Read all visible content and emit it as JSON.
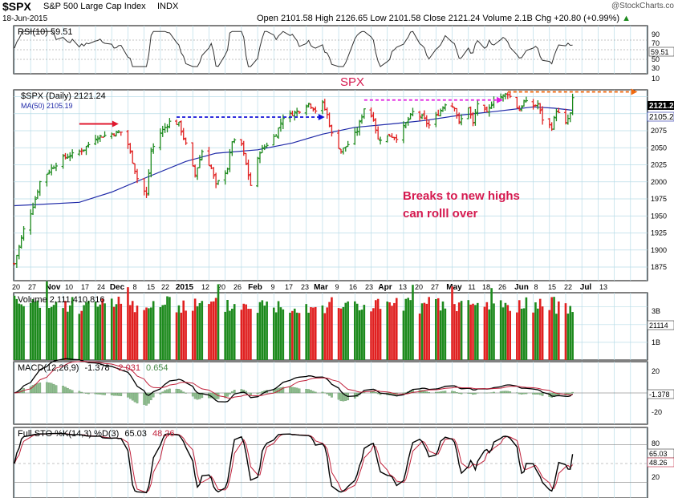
{
  "header": {
    "symbol": "$SPX",
    "name": "S&P 500 Large Cap Index",
    "exchange": "INDX",
    "date": "18-Jun-2015",
    "watermark": "@StockCharts.com",
    "open_label": "Open",
    "open": "2101.58",
    "high_label": "High",
    "high": "2126.65",
    "low_label": "Low",
    "low": "2101.58",
    "close_label": "Close",
    "close": "2121.24",
    "volume_label": "Volume",
    "volume": "2.1B",
    "chg_label": "Chg",
    "chg": "+20.80 (+0.99%)",
    "chg_arrow": "▲"
  },
  "colors": {
    "grid": "#b9dce8",
    "bar_up": "#1d8a1d",
    "bar_down": "#e02020",
    "ma": "#1f2aa8",
    "annotation": "#d5194f",
    "arrow_red": "#e0182e",
    "arrow_blue": "#1212d8",
    "arrow_magenta": "#e020e0",
    "arrow_orange": "#f06a10",
    "rsi_fill": "#8fbf8f",
    "macd_hist": "#8fbf8f",
    "stoch_slow": "#c0203a"
  },
  "rsi_panel": {
    "legend": "RSI(10) 59.51",
    "value_badge": "59.51",
    "ticks": [
      "90",
      "70",
      "50",
      "30",
      "10"
    ]
  },
  "price_panel": {
    "legend_price": "$SPX (Daily) 2121.24",
    "legend_ma": "MA(50) 2105.19",
    "title_annotation": "SPX",
    "note_line1": "Breaks to new highs",
    "note_line2": "can rolll over",
    "price_badge": "2121.2",
    "ma_badge": "2105.2",
    "y_ticks": [
      "2075",
      "2050",
      "2025",
      "2000",
      "1975",
      "1950",
      "1925",
      "1900",
      "1875"
    ]
  },
  "x_axis": {
    "labels": [
      "20",
      "27",
      "Nov",
      "10",
      "17",
      "24",
      "Dec",
      "8",
      "15",
      "22",
      "2015",
      "12",
      "20",
      "26",
      "Feb",
      "9",
      "17",
      "23",
      "Mar",
      "9",
      "16",
      "23",
      "Apr",
      "13",
      "20",
      "27",
      "May",
      "11",
      "18",
      "26",
      "Jun",
      "8",
      "15",
      "22",
      "Jul",
      "13"
    ]
  },
  "volume_panel": {
    "legend": "Volume 2,111,410,816",
    "value_badge": "21114",
    "ticks": [
      "3B",
      "1B"
    ]
  },
  "macd_panel": {
    "legend_name": "MACD(12,26,9)",
    "legend_macd": "-1.378",
    "legend_signal": "-2.031",
    "legend_hist": "0.654",
    "value_badge": "-1.378",
    "ticks": [
      "20",
      "-20"
    ]
  },
  "stoch_panel": {
    "legend_name": "Full STO %K(14,3) %D(3)",
    "legend_k": "65.03",
    "legend_d": "48.26",
    "k_badge": "65.03",
    "d_badge": "48.26",
    "ticks": [
      "80",
      "20"
    ]
  },
  "chart_data": {
    "type": "ohlc",
    "title": "$SPX S&P 500 Large Cap Index INDX",
    "x_range": [
      "2014-10-20",
      "2015-07-20"
    ],
    "price_ylim": [
      1855,
      2135
    ],
    "price_points": [
      [
        "2014-10-20",
        1880
      ],
      [
        "2014-10-22",
        1905
      ],
      [
        "2014-10-24",
        1930
      ],
      [
        "2014-10-27",
        1955
      ],
      [
        "2014-10-29",
        1975
      ],
      [
        "2014-10-31",
        2000
      ],
      [
        "2014-11-05",
        2020
      ],
      [
        "2014-11-10",
        2035
      ],
      [
        "2014-11-14",
        2040
      ],
      [
        "2014-11-19",
        2048
      ],
      [
        "2014-11-24",
        2065
      ],
      [
        "2014-11-28",
        2068
      ],
      [
        "2014-12-03",
        2072
      ],
      [
        "2014-12-05",
        2073
      ],
      [
        "2014-12-08",
        2055
      ],
      [
        "2014-12-10",
        2030
      ],
      [
        "2014-12-12",
        2005
      ],
      [
        "2014-12-16",
        1980
      ],
      [
        "2014-12-18",
        2045
      ],
      [
        "2014-12-22",
        2072
      ],
      [
        "2014-12-26",
        2088
      ],
      [
        "2014-12-30",
        2085
      ],
      [
        "2015-01-02",
        2055
      ],
      [
        "2015-01-06",
        2010
      ],
      [
        "2015-01-09",
        2045
      ],
      [
        "2015-01-13",
        2020
      ],
      [
        "2015-01-15",
        1995
      ],
      [
        "2015-01-20",
        2020
      ],
      [
        "2015-01-22",
        2060
      ],
      [
        "2015-01-26",
        2055
      ],
      [
        "2015-01-28",
        2025
      ],
      [
        "2015-01-30",
        1995
      ],
      [
        "2015-02-03",
        2045
      ],
      [
        "2015-02-06",
        2055
      ],
      [
        "2015-02-10",
        2070
      ],
      [
        "2015-02-13",
        2095
      ],
      [
        "2015-02-17",
        2100
      ],
      [
        "2015-02-20",
        2105
      ],
      [
        "2015-02-24",
        2115
      ],
      [
        "2015-02-27",
        2105
      ],
      [
        "2015-03-02",
        2115
      ],
      [
        "2015-03-04",
        2098
      ],
      [
        "2015-03-06",
        2070
      ],
      [
        "2015-03-10",
        2045
      ],
      [
        "2015-03-13",
        2055
      ],
      [
        "2015-03-17",
        2075
      ],
      [
        "2015-03-20",
        2108
      ],
      [
        "2015-03-24",
        2093
      ],
      [
        "2015-03-26",
        2062
      ],
      [
        "2015-03-31",
        2068
      ],
      [
        "2015-04-03",
        2065
      ],
      [
        "2015-04-06",
        2080
      ],
      [
        "2015-04-10",
        2102
      ],
      [
        "2015-04-14",
        2095
      ],
      [
        "2015-04-17",
        2083
      ],
      [
        "2015-04-21",
        2100
      ],
      [
        "2015-04-24",
        2115
      ],
      [
        "2015-04-28",
        2110
      ],
      [
        "2015-04-30",
        2086
      ],
      [
        "2015-05-04",
        2110
      ],
      [
        "2015-05-06",
        2085
      ],
      [
        "2015-05-08",
        2115
      ],
      [
        "2015-05-12",
        2100
      ],
      [
        "2015-05-15",
        2122
      ],
      [
        "2015-05-19",
        2126
      ],
      [
        "2015-05-21",
        2130
      ],
      [
        "2015-05-26",
        2105
      ],
      [
        "2015-05-28",
        2118
      ],
      [
        "2015-06-01",
        2111
      ],
      [
        "2015-06-03",
        2114
      ],
      [
        "2015-06-05",
        2092
      ],
      [
        "2015-06-09",
        2080
      ],
      [
        "2015-06-11",
        2105
      ],
      [
        "2015-06-15",
        2085
      ],
      [
        "2015-06-17",
        2100
      ],
      [
        "2015-06-18",
        2121
      ]
    ],
    "ma50_points": [
      [
        "2014-10-20",
        1965
      ],
      [
        "2014-11-17",
        1970
      ],
      [
        "2014-12-01",
        1985
      ],
      [
        "2014-12-15",
        2005
      ],
      [
        "2015-01-02",
        2030
      ],
      [
        "2015-01-15",
        2042
      ],
      [
        "2015-02-02",
        2047
      ],
      [
        "2015-02-17",
        2057
      ],
      [
        "2015-03-02",
        2070
      ],
      [
        "2015-03-16",
        2080
      ],
      [
        "2015-04-01",
        2085
      ],
      [
        "2015-04-15",
        2090
      ],
      [
        "2015-05-01",
        2098
      ],
      [
        "2015-05-15",
        2103
      ],
      [
        "2015-06-01",
        2110
      ],
      [
        "2015-06-10",
        2108
      ],
      [
        "2015-06-18",
        2105
      ]
    ],
    "annotations": [
      {
        "type": "arrow",
        "color": "red",
        "from": [
          "2014-11-17",
          2085
        ],
        "to": [
          "2014-12-04",
          2085
        ],
        "style": "solid"
      },
      {
        "type": "arrow",
        "color": "blue",
        "from": [
          "2014-12-29",
          2095
        ],
        "to": [
          "2015-03-03",
          2095
        ],
        "style": "dashed"
      },
      {
        "type": "arrow",
        "color": "magenta",
        "from": [
          "2015-03-20",
          2120
        ],
        "to": [
          "2015-05-19",
          2120
        ],
        "style": "dashed"
      },
      {
        "type": "arrow",
        "color": "orange",
        "from": [
          "2015-05-21",
          2132
        ],
        "to": [
          "2015-07-16",
          2132
        ],
        "style": "dashed"
      }
    ],
    "rsi_range": [
      0,
      100
    ],
    "rsi_current": 59.51,
    "volume_current": 2111410816,
    "macd_current": {
      "macd": -1.378,
      "signal": -2.031,
      "histogram": 0.654
    },
    "stoch_current": {
      "k": 65.03,
      "d": 48.26
    },
    "volume_ticks": [
      "3B",
      "1B"
    ]
  }
}
